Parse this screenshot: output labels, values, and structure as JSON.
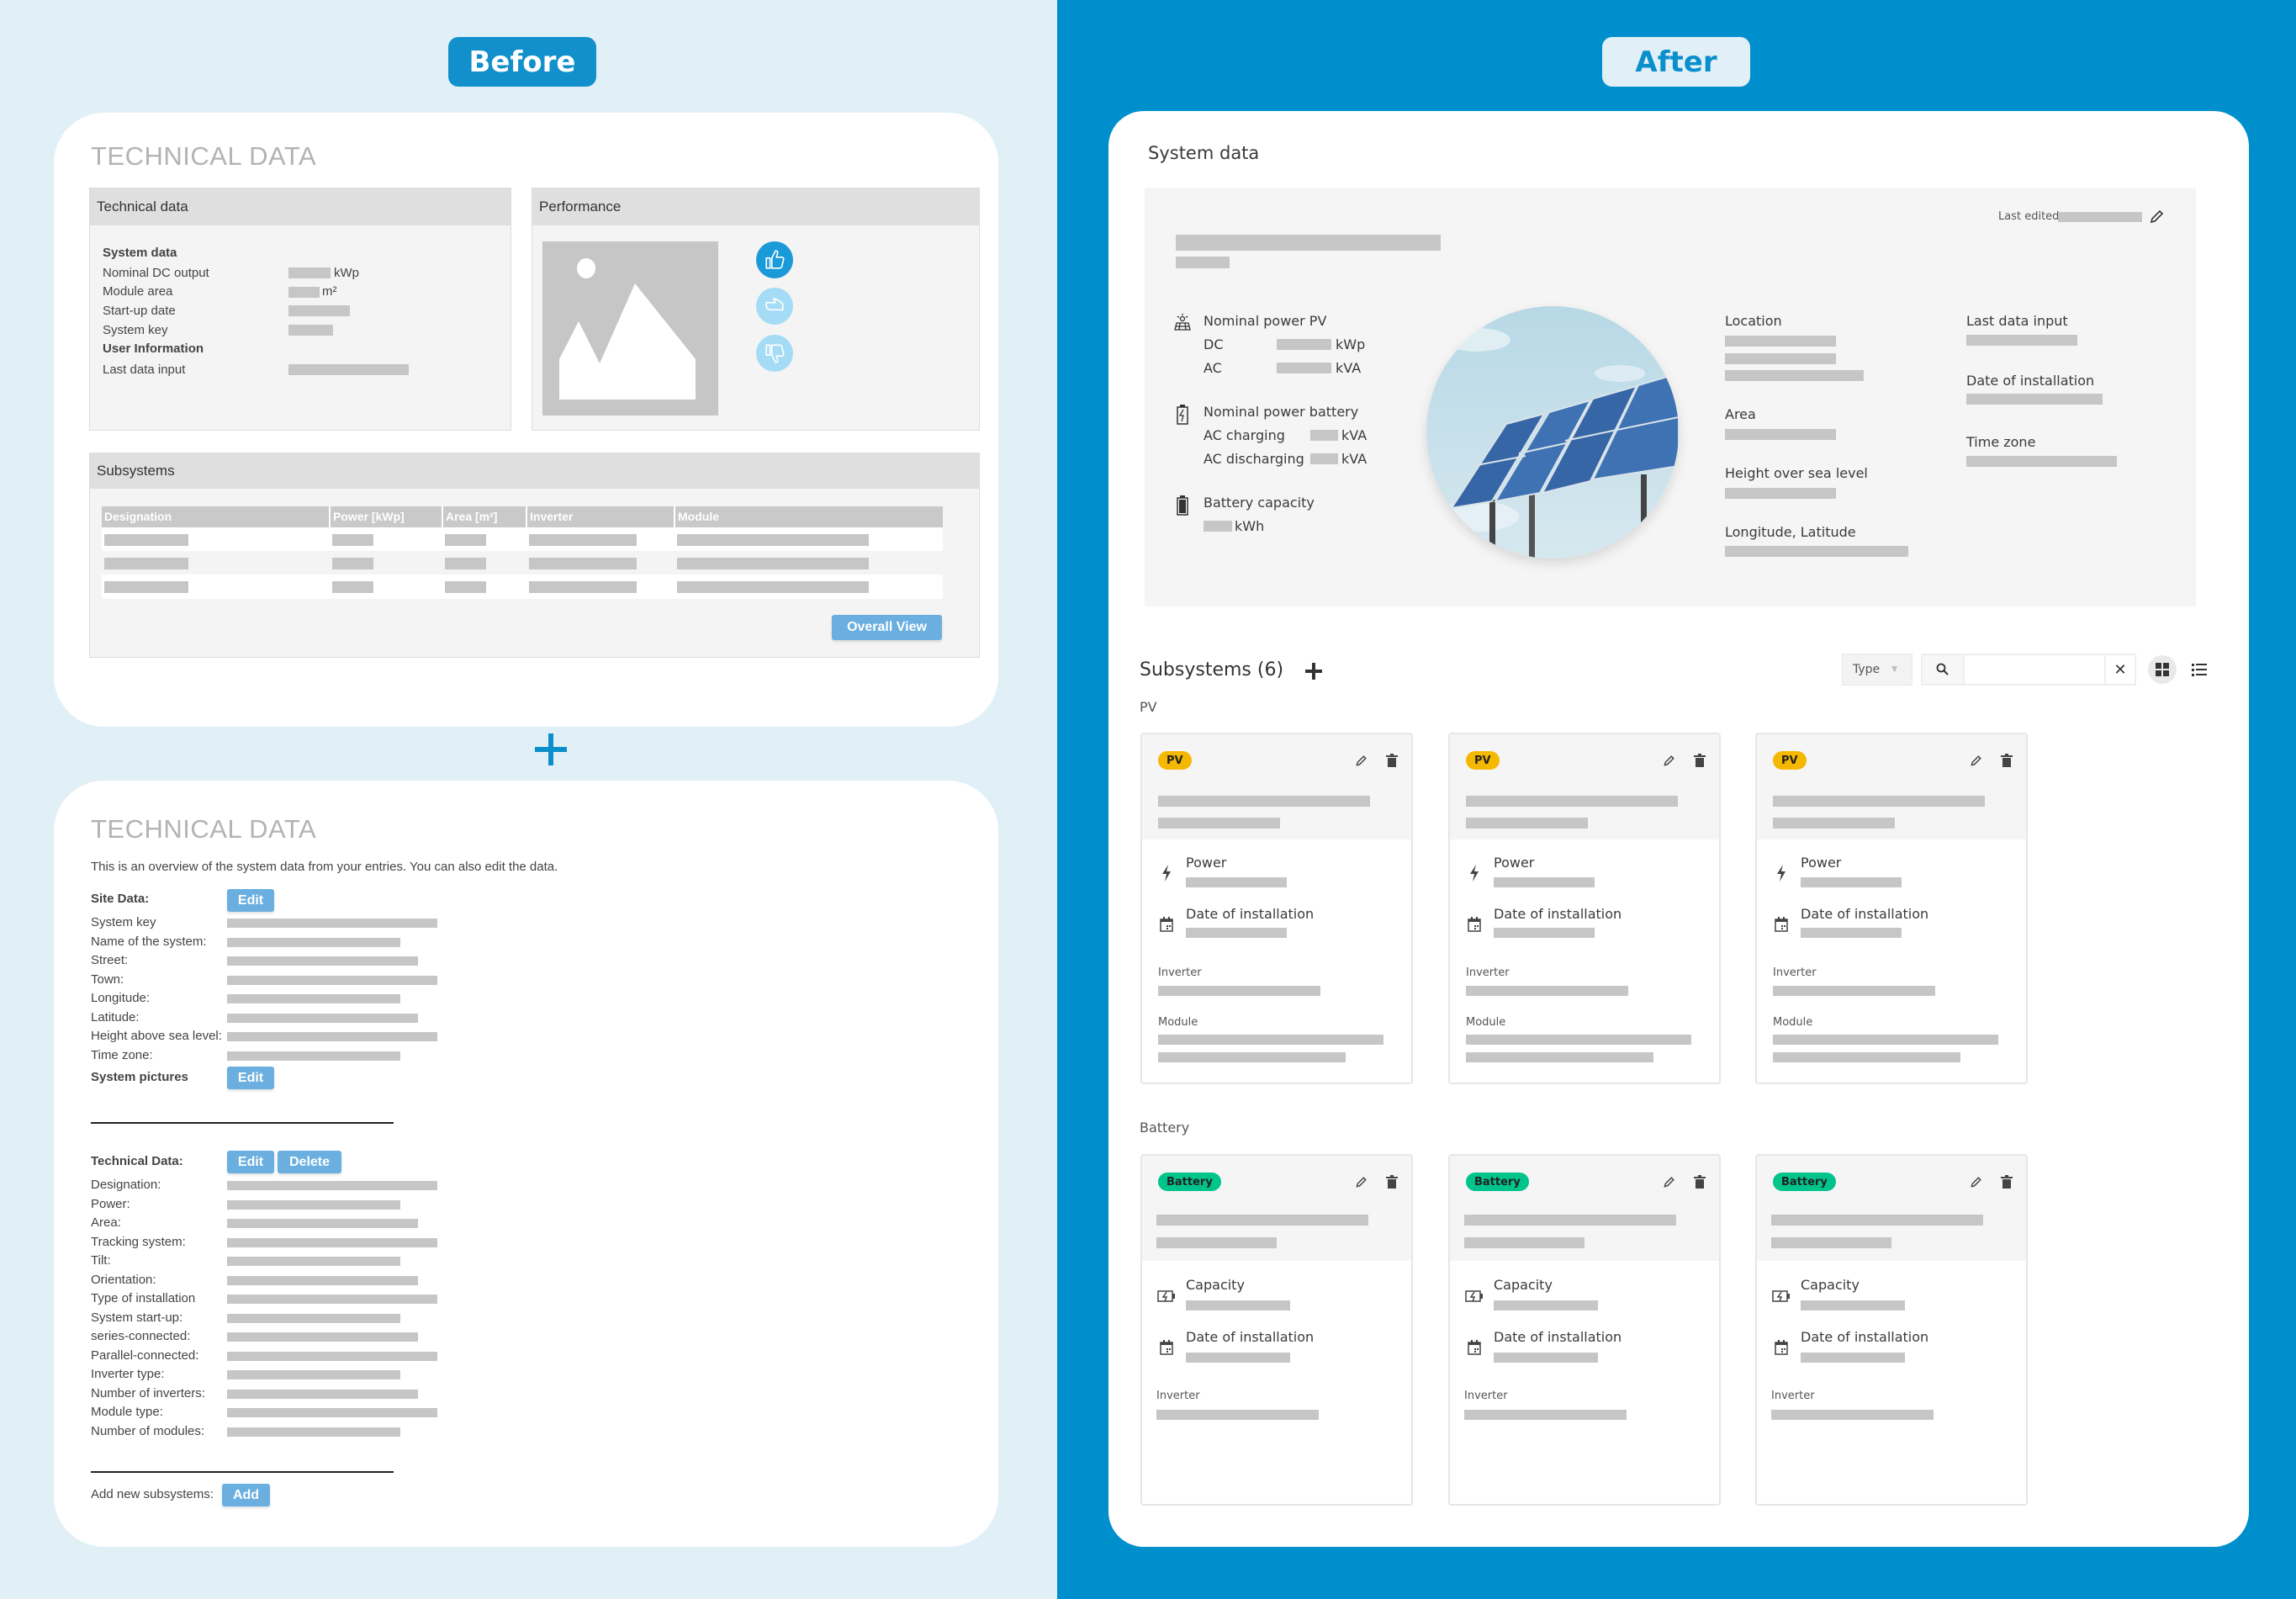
{
  "labels": {
    "before": "Before",
    "after": "After"
  },
  "colors": {
    "left_bg": "#e1f0f7",
    "right_bg": "#008fcd",
    "button": "#6aafe0",
    "pv_badge": "#f5b800",
    "battery_badge": "#00c48c"
  },
  "before_top": {
    "title": "TECHNICAL DATA",
    "technical_panel": {
      "header": "Technical data",
      "system_data_heading": "System data",
      "rows": [
        {
          "label": "Nominal DC output",
          "unit": "kWp"
        },
        {
          "label": "Module area",
          "unit": "m²"
        },
        {
          "label": "Start-up date",
          "unit": ""
        },
        {
          "label": "System key",
          "unit": ""
        }
      ],
      "user_info_heading": "User Information",
      "last_data_input": "Last data input"
    },
    "performance_panel": {
      "header": "Performance",
      "icons": [
        "thumbs-up-icon",
        "thumbs-sideways-icon",
        "thumbs-down-icon"
      ]
    },
    "subsystems_panel": {
      "header": "Subsystems",
      "columns": [
        "Designation",
        "Power [kWp]",
        "Area [m²]",
        "Inverter",
        "Module"
      ],
      "overall_view": "Overall View"
    }
  },
  "before_bottom": {
    "title": "TECHNICAL DATA",
    "intro": "This is an overview of the system data from your entries. You can also edit the data.",
    "site_data_heading": "Site Data:",
    "edit": "Edit",
    "delete": "Delete",
    "site_fields": [
      "System key",
      "Name of the system:",
      "Street:",
      "Town:",
      "Longitude:",
      "Latitude:",
      "Height above sea level:",
      "Time zone:"
    ],
    "system_pictures": "System pictures",
    "technical_data_heading": "Technical Data:",
    "technical_fields": [
      "Designation:",
      "Power:",
      "Area:",
      "Tracking system:",
      "Tilt:",
      "Orientation:",
      "Type of installation",
      "System start-up:",
      "series-connected:",
      "Parallel-connected:",
      "Inverter type:",
      "Number of inverters:",
      "Module type:",
      "Number of modules:"
    ],
    "add_new_label": "Add new subsystems:",
    "add": "Add"
  },
  "after": {
    "title": "System data",
    "last_edited": "Last edited",
    "nominal_power_pv": "Nominal power PV",
    "dc": "DC",
    "dc_unit": "kWp",
    "ac": "AC",
    "ac_unit": "kVA",
    "nominal_power_battery": "Nominal power battery",
    "ac_charging": "AC charging",
    "ac_charging_unit": "kVA",
    "ac_discharging": "AC discharging",
    "ac_discharging_unit": "kVA",
    "battery_capacity": "Battery capacity",
    "battery_capacity_unit": "kWh",
    "location": "Location",
    "area": "Area",
    "height": "Height over sea level",
    "lonlat": "Longitude, Latitude",
    "last_data_input": "Last data input",
    "date_of_installation": "Date of installation",
    "time_zone": "Time zone",
    "subsystems_title": "Subsystems",
    "subsystems_count": "(6)",
    "type_filter": "Type",
    "search_placeholder": "",
    "pv_group": "PV",
    "battery_group": "Battery",
    "pv_card": {
      "badge": "PV",
      "power": "Power",
      "date": "Date of installation",
      "inverter": "Inverter",
      "module": "Module"
    },
    "battery_card": {
      "badge": "Battery",
      "capacity": "Capacity",
      "date": "Date of installation",
      "inverter": "Inverter"
    },
    "pv_card_count": 3,
    "battery_card_count": 3
  }
}
